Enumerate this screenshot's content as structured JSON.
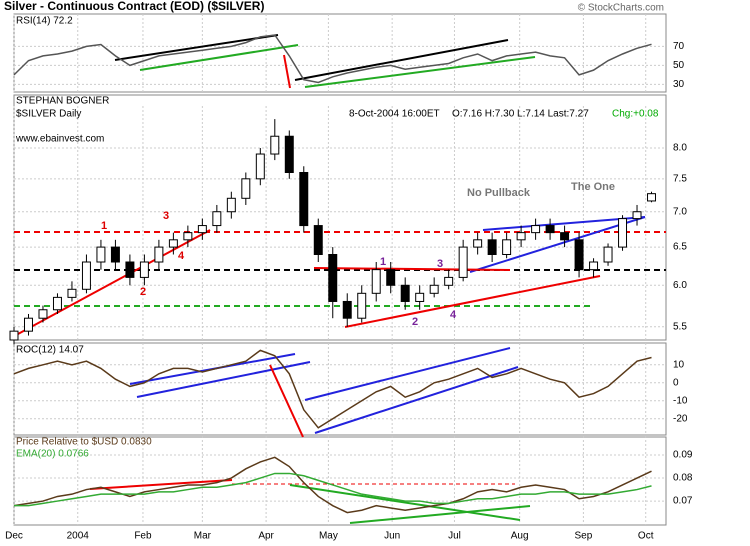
{
  "header": {
    "title": "Silver - Continuous Contract (EOD) ($SILVER)",
    "copyright": "© StockCharts.com",
    "author": "STEPHAN BOGNER",
    "symbol": "$SILVER Daily",
    "website": "www.ebainvest.com",
    "date": "8-Oct-2004 16:00ET",
    "quote": "O:7.16 H:7.30 L:7.14 Last:7.27",
    "change": "Chg:+0.08"
  },
  "chart_data": [
    {
      "type": "line",
      "title": "RSI(14) 72.2",
      "x": [
        0,
        1,
        2,
        3,
        4,
        5,
        6,
        7,
        8,
        9,
        10,
        11,
        12,
        13,
        14,
        15,
        16,
        17,
        18,
        19,
        20,
        21,
        22,
        23,
        24,
        25,
        26,
        27,
        28,
        29,
        30,
        31,
        32,
        33,
        34,
        35,
        36,
        37,
        38,
        39,
        40,
        41,
        42,
        43,
        44
      ],
      "xlim": [
        0,
        45
      ],
      "series": [
        {
          "color": "#555555",
          "values": [
            40,
            55,
            60,
            62,
            65,
            70,
            72,
            60,
            50,
            55,
            60,
            62,
            64,
            66,
            68,
            70,
            74,
            80,
            82,
            60,
            35,
            32,
            38,
            42,
            45,
            48,
            50,
            46,
            48,
            50,
            52,
            58,
            62,
            55,
            60,
            62,
            64,
            60,
            58,
            40,
            45,
            55,
            62,
            68,
            72.2
          ]
        }
      ],
      "ylim": [
        22,
        102
      ],
      "yticks": [
        30,
        50,
        70
      ],
      "grid": true
    },
    {
      "type": "candlestick",
      "x": [
        0,
        1,
        2,
        3,
        4,
        5,
        6,
        7,
        8,
        9,
        10,
        11,
        12,
        13,
        14,
        15,
        16,
        17,
        18,
        19,
        20,
        21,
        22,
        23,
        24,
        25,
        26,
        27,
        28,
        29,
        30,
        31,
        32,
        33,
        34,
        35,
        36,
        37,
        38,
        39,
        40,
        41,
        42,
        43,
        44
      ],
      "xlim": [
        0,
        45
      ],
      "log": true,
      "open": [
        5.35,
        5.45,
        5.6,
        5.7,
        5.85,
        5.95,
        6.3,
        6.5,
        6.3,
        6.1,
        6.3,
        6.5,
        6.6,
        6.7,
        6.8,
        7.0,
        7.2,
        7.5,
        7.9,
        8.2,
        7.6,
        6.8,
        6.4,
        5.8,
        5.6,
        5.9,
        6.2,
        6.0,
        5.8,
        5.9,
        6.0,
        6.1,
        6.5,
        6.6,
        6.4,
        6.6,
        6.7,
        6.8,
        6.7,
        6.6,
        6.2,
        6.3,
        6.5,
        6.9,
        7.16
      ],
      "high": [
        5.5,
        5.65,
        5.75,
        5.9,
        6.05,
        6.4,
        6.6,
        6.6,
        6.4,
        6.4,
        6.6,
        6.7,
        6.8,
        6.9,
        7.1,
        7.3,
        7.6,
        8.0,
        8.5,
        8.3,
        7.7,
        6.9,
        6.5,
        5.9,
        6.0,
        6.3,
        6.3,
        6.1,
        6.0,
        6.1,
        6.2,
        6.6,
        6.7,
        6.7,
        6.7,
        6.8,
        6.9,
        6.9,
        6.8,
        6.7,
        6.35,
        6.55,
        6.95,
        7.1,
        7.3
      ],
      "low": [
        5.3,
        5.4,
        5.55,
        5.65,
        5.8,
        5.9,
        6.2,
        6.2,
        6.0,
        6.0,
        6.2,
        6.4,
        6.5,
        6.6,
        6.7,
        6.9,
        7.1,
        7.4,
        7.8,
        7.5,
        6.7,
        6.3,
        5.6,
        5.5,
        5.55,
        5.8,
        5.9,
        5.7,
        5.7,
        5.85,
        5.95,
        6.05,
        6.4,
        6.3,
        6.35,
        6.5,
        6.6,
        6.6,
        6.5,
        6.1,
        6.1,
        6.25,
        6.45,
        6.8,
        7.14
      ],
      "close": [
        5.45,
        5.6,
        5.7,
        5.85,
        5.95,
        6.3,
        6.5,
        6.3,
        6.1,
        6.3,
        6.5,
        6.6,
        6.7,
        6.8,
        7.0,
        7.2,
        7.5,
        7.9,
        8.2,
        7.6,
        6.8,
        6.4,
        5.8,
        5.6,
        5.9,
        6.2,
        6.0,
        5.8,
        5.9,
        6.0,
        6.1,
        6.5,
        6.6,
        6.4,
        6.6,
        6.7,
        6.8,
        6.7,
        6.6,
        6.2,
        6.3,
        6.5,
        6.9,
        7.0,
        7.27
      ],
      "ylim": [
        5.35,
        8.7
      ],
      "yticks": [
        5.5,
        {
          "value": 6,
          "label": "6.0"
        },
        6.5,
        {
          "value": 7,
          "label": "7.0"
        },
        7.5,
        {
          "value": 8,
          "label": "8.0"
        }
      ],
      "grid": true,
      "annotations": [
        "1",
        "2",
        "3",
        "4",
        "1",
        "2",
        "3",
        "4",
        "No Pullback",
        "The One"
      ]
    },
    {
      "type": "line",
      "title": "ROC(12) 14.07",
      "x": [
        0,
        1,
        2,
        3,
        4,
        5,
        6,
        7,
        8,
        9,
        10,
        11,
        12,
        13,
        14,
        15,
        16,
        17,
        18,
        19,
        20,
        21,
        22,
        23,
        24,
        25,
        26,
        27,
        28,
        29,
        30,
        31,
        32,
        33,
        34,
        35,
        36,
        37,
        38,
        39,
        40,
        41,
        42,
        43,
        44
      ],
      "xlim": [
        0,
        45
      ],
      "series": [
        {
          "color": "#5a3a1a",
          "values": [
            5,
            8,
            10,
            12,
            10,
            12,
            8,
            2,
            -2,
            0,
            5,
            8,
            8,
            6,
            8,
            10,
            12,
            18,
            15,
            5,
            -15,
            -25,
            -20,
            -15,
            -10,
            -5,
            -2,
            -8,
            -5,
            0,
            2,
            5,
            8,
            3,
            5,
            8,
            5,
            2,
            0,
            -8,
            -6,
            -2,
            5,
            12,
            14.07
          ]
        }
      ],
      "ylim": [
        -29,
        21
      ],
      "yticks": [
        10,
        0,
        -10,
        -20
      ],
      "grid": true
    },
    {
      "type": "line",
      "x": [
        0,
        1,
        2,
        3,
        4,
        5,
        6,
        7,
        8,
        9,
        10,
        11,
        12,
        13,
        14,
        15,
        16,
        17,
        18,
        19,
        20,
        21,
        22,
        23,
        24,
        25,
        26,
        27,
        28,
        29,
        30,
        31,
        32,
        33,
        34,
        35,
        36,
        37,
        38,
        39,
        40,
        41,
        42,
        43,
        44
      ],
      "xlim": [
        0,
        45
      ],
      "xticks": [
        {
          "value": 0,
          "label": "Dec"
        },
        {
          "value": 4.4,
          "label": "2004"
        },
        {
          "value": 8.9,
          "label": "Feb"
        },
        {
          "value": 13,
          "label": "Mar"
        },
        {
          "value": 17.4,
          "label": "Apr"
        },
        {
          "value": 21.7,
          "label": "May"
        },
        {
          "value": 26.1,
          "label": "Jun"
        },
        {
          "value": 30.4,
          "label": "Jul"
        },
        {
          "value": 34.9,
          "label": "Aug"
        },
        {
          "value": 39.3,
          "label": "Sep"
        },
        {
          "value": 43.6,
          "label": "Oct"
        }
      ],
      "series": [
        {
          "name": "Price Relative to $USD  0.0830",
          "color": "#5a3a1a",
          "values": [
            0.068,
            0.069,
            0.07,
            0.072,
            0.073,
            0.075,
            0.076,
            0.074,
            0.072,
            0.074,
            0.075,
            0.076,
            0.077,
            0.077,
            0.078,
            0.08,
            0.084,
            0.087,
            0.089,
            0.085,
            0.078,
            0.072,
            0.068,
            0.065,
            0.066,
            0.068,
            0.067,
            0.066,
            0.067,
            0.068,
            0.069,
            0.071,
            0.074,
            0.075,
            0.074,
            0.076,
            0.077,
            0.076,
            0.075,
            0.071,
            0.072,
            0.074,
            0.077,
            0.08,
            0.083
          ]
        },
        {
          "name": "EMA(20) 0.0766",
          "color": "#33aa33",
          "values": [
            0.068,
            0.068,
            0.069,
            0.07,
            0.071,
            0.072,
            0.073,
            0.073,
            0.073,
            0.073,
            0.074,
            0.074,
            0.075,
            0.076,
            0.076,
            0.077,
            0.078,
            0.08,
            0.082,
            0.082,
            0.081,
            0.079,
            0.077,
            0.075,
            0.073,
            0.072,
            0.071,
            0.07,
            0.07,
            0.069,
            0.069,
            0.07,
            0.071,
            0.071,
            0.072,
            0.073,
            0.073,
            0.074,
            0.074,
            0.073,
            0.073,
            0.073,
            0.074,
            0.075,
            0.0766
          ]
        }
      ],
      "ylim": [
        0.0596,
        0.0974
      ],
      "yticks": [
        0.09,
        0.08,
        0.07
      ],
      "grid": true
    }
  ]
}
